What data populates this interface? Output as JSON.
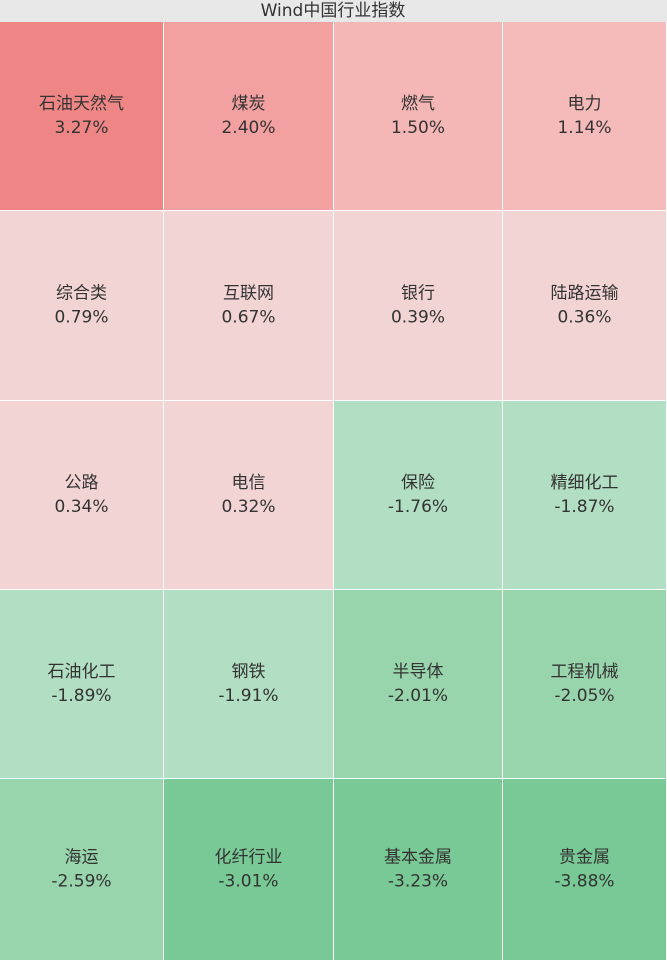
{
  "chart_data": {
    "type": "heatmap",
    "title": "Wind中国行业指数",
    "categories": [
      "石油天然气",
      "煤炭",
      "燃气",
      "电力",
      "综合类",
      "互联网",
      "银行",
      "陆路运输",
      "公路",
      "电信",
      "保险",
      "精细化工",
      "石油化工",
      "钢铁",
      "半导体",
      "工程机械",
      "海运",
      "化纤行业",
      "基本金属",
      "贵金属"
    ],
    "values": [
      3.27,
      2.4,
      1.5,
      1.14,
      0.79,
      0.67,
      0.39,
      0.36,
      0.34,
      0.32,
      -1.76,
      -1.87,
      -1.89,
      -1.91,
      -2.01,
      -2.05,
      -2.59,
      -3.01,
      -3.23,
      -3.88
    ],
    "value_labels": [
      "3.27%",
      "2.40%",
      "1.50%",
      "1.14%",
      "0.79%",
      "0.67%",
      "0.39%",
      "0.36%",
      "0.34%",
      "0.32%",
      "-1.76%",
      "-1.87%",
      "-1.89%",
      "-1.91%",
      "-2.01%",
      "-2.05%",
      "-2.59%",
      "-3.01%",
      "-3.23%",
      "-3.88%"
    ],
    "colors": [
      "#ef8686",
      "#f2a0a0",
      "#f5b6b6",
      "#f5baba",
      "#f2d4d4",
      "#f2d4d4",
      "#f2d4d4",
      "#f2d4d4",
      "#f2d4d4",
      "#f2d4d4",
      "#b2dfc3",
      "#b2dfc3",
      "#b2dfc3",
      "#b2dfc3",
      "#98d4ac",
      "#98d4ac",
      "#98d4ac",
      "#78c995",
      "#78c995",
      "#78c995"
    ]
  }
}
